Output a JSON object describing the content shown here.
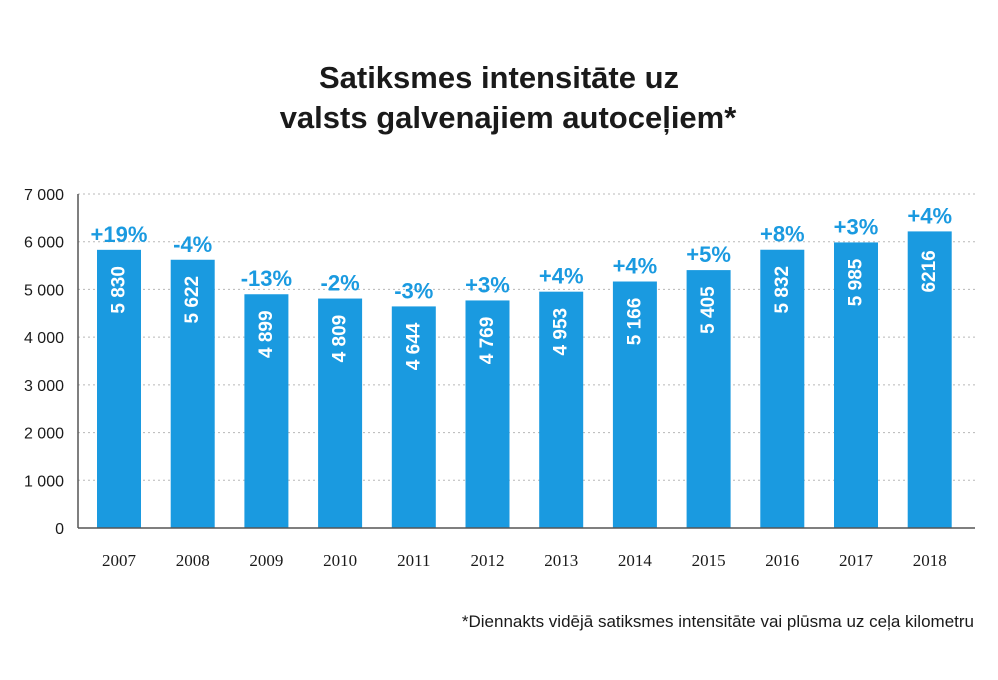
{
  "chart_data": {
    "type": "bar",
    "title_line1": "Satiksmes intensitāte uz",
    "title_line2": "valsts galvenajiem autoceļiem*",
    "xlabel": "",
    "ylabel": "",
    "ylim": [
      0,
      7000
    ],
    "yticks": [
      0,
      1000,
      2000,
      3000,
      4000,
      5000,
      6000,
      7000
    ],
    "ytick_labels": [
      "0",
      "1 000",
      "2 000",
      "3 000",
      "4 000",
      "5 000",
      "6 000",
      "7 000"
    ],
    "grid": true,
    "categories": [
      "2007",
      "2008",
      "2009",
      "2010",
      "2011",
      "2012",
      "2013",
      "2014",
      "2015",
      "2016",
      "2017",
      "2018"
    ],
    "values": [
      5830,
      5622,
      4899,
      4809,
      4644,
      4769,
      4953,
      5166,
      5405,
      5832,
      5985,
      6216
    ],
    "value_labels": [
      "5 830",
      "5 622",
      "4 899",
      "4 809",
      "4 644",
      "4 769",
      "4 953",
      "5 166",
      "5 405",
      "5 832",
      "5 985",
      "6216"
    ],
    "change_labels": [
      "+19%",
      "-4%",
      "-13%",
      "-2%",
      "-3%",
      "+3%",
      "+4%",
      "+4%",
      "+5%",
      "+8%",
      "+3%",
      "+4%"
    ],
    "footnote": "*Diennakts vidējā satiksmes intensitāte vai plūsma uz ceļa kilometru",
    "colors": {
      "bar": "#1a9ae0",
      "change_label": "#1a9ae0",
      "grid": "#b8b8b8",
      "axis": "#555555",
      "text": "#1a1a1a"
    }
  }
}
